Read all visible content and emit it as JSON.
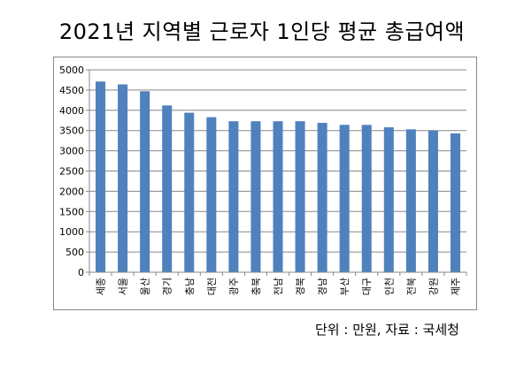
{
  "title": "2021년 지역별 근로자 1인당 평균 총급여액",
  "source_note": "단위 : 만원, 자료 : 국세청",
  "colors": {
    "bar": "#4F81BD",
    "axis": "#888888",
    "grid": "#888888"
  },
  "chart_data": {
    "type": "bar",
    "title": "2021년 지역별 근로자 1인당 평균 총급여액",
    "xlabel": "",
    "ylabel": "",
    "ylim": [
      0,
      5000
    ],
    "yticks": [
      "0",
      "500",
      "1000",
      "1500",
      "2000",
      "2500",
      "3000",
      "3500",
      "4000",
      "4500",
      "5000"
    ],
    "grid": true,
    "categories": [
      "세종",
      "서울",
      "울산",
      "경기",
      "충남",
      "대전",
      "광주",
      "충북",
      "전남",
      "경북",
      "경남",
      "부산",
      "대구",
      "인천",
      "전북",
      "강원",
      "제주"
    ],
    "values": [
      4710,
      4640,
      4470,
      4120,
      3940,
      3830,
      3730,
      3730,
      3730,
      3730,
      3690,
      3640,
      3640,
      3580,
      3530,
      3500,
      3430
    ]
  }
}
